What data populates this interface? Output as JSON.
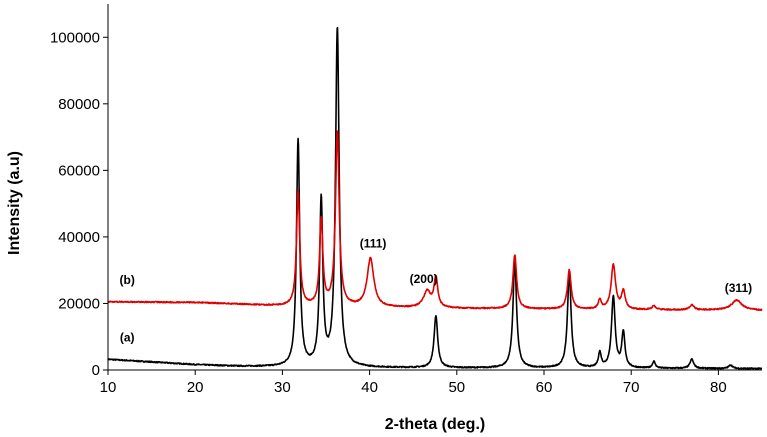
{
  "chart_data": {
    "type": "line",
    "xlabel": "2-theta (deg.)",
    "ylabel": "Intensity (a.u)",
    "xlim": [
      10,
      85
    ],
    "ylim": [
      0,
      110000
    ],
    "xticks": [
      "10",
      "20",
      "30",
      "40",
      "50",
      "60",
      "70",
      "80"
    ],
    "yticks": [
      "0",
      "20000",
      "40000",
      "60000",
      "80000",
      "100000"
    ],
    "grid": false,
    "legend": "none",
    "series": [
      {
        "name": "(a)",
        "color": "#000000",
        "baseline": [
          [
            10,
            3200
          ],
          [
            15,
            2400
          ],
          [
            20,
            1600
          ],
          [
            25,
            1100
          ],
          [
            30,
            900
          ],
          [
            40,
            700
          ],
          [
            50,
            600
          ],
          [
            60,
            550
          ],
          [
            70,
            500
          ],
          [
            80,
            450
          ],
          [
            85,
            400
          ]
        ],
        "peaks": [
          {
            "x": 31.8,
            "y": 69000,
            "w": 0.22
          },
          {
            "x": 34.45,
            "y": 50500,
            "w": 0.22
          },
          {
            "x": 36.3,
            "y": 102500,
            "w": 0.25
          },
          {
            "x": 47.6,
            "y": 16200,
            "w": 0.25
          },
          {
            "x": 56.65,
            "y": 32500,
            "w": 0.25
          },
          {
            "x": 62.9,
            "y": 29000,
            "w": 0.25
          },
          {
            "x": 66.4,
            "y": 5000,
            "w": 0.2
          },
          {
            "x": 67.95,
            "y": 22000,
            "w": 0.25
          },
          {
            "x": 69.1,
            "y": 11000,
            "w": 0.22
          },
          {
            "x": 72.6,
            "y": 2500,
            "w": 0.2
          },
          {
            "x": 76.95,
            "y": 3200,
            "w": 0.25
          },
          {
            "x": 81.4,
            "y": 1500,
            "w": 0.25
          }
        ]
      },
      {
        "name": "(b)",
        "color": "#e00000",
        "baseline": [
          [
            10,
            20500
          ],
          [
            20,
            20300
          ],
          [
            25,
            19800
          ],
          [
            30,
            19200
          ],
          [
            40,
            18800
          ],
          [
            50,
            18500
          ],
          [
            60,
            18300
          ],
          [
            70,
            18100
          ],
          [
            80,
            18000
          ],
          [
            85,
            17900
          ]
        ],
        "peaks": [
          {
            "x": 31.8,
            "y": 53500,
            "w": 0.22
          },
          {
            "x": 34.45,
            "y": 45000,
            "w": 0.22
          },
          {
            "x": 36.3,
            "y": 71500,
            "w": 0.25
          },
          {
            "x": 40.1,
            "y": 33500,
            "w": 0.45
          },
          {
            "x": 46.6,
            "y": 23500,
            "w": 0.5
          },
          {
            "x": 47.6,
            "y": 27500,
            "w": 0.25
          },
          {
            "x": 56.65,
            "y": 34500,
            "w": 0.25
          },
          {
            "x": 62.9,
            "y": 30000,
            "w": 0.25
          },
          {
            "x": 66.4,
            "y": 21000,
            "w": 0.2
          },
          {
            "x": 67.95,
            "y": 31500,
            "w": 0.3
          },
          {
            "x": 69.1,
            "y": 23500,
            "w": 0.25
          },
          {
            "x": 72.6,
            "y": 19200,
            "w": 0.25
          },
          {
            "x": 76.95,
            "y": 19500,
            "w": 0.3
          },
          {
            "x": 82.1,
            "y": 21000,
            "w": 0.7
          }
        ]
      }
    ],
    "annotations": [
      {
        "text": "(a)",
        "x": 12.2,
        "y": 8500
      },
      {
        "text": "(b)",
        "x": 12.2,
        "y": 25800
      },
      {
        "text": "(111)",
        "x": 40.4,
        "y": 36800
      },
      {
        "text": "(200)",
        "x": 46.2,
        "y": 26200
      },
      {
        "text": "(311)",
        "x": 82.3,
        "y": 23500
      }
    ]
  }
}
